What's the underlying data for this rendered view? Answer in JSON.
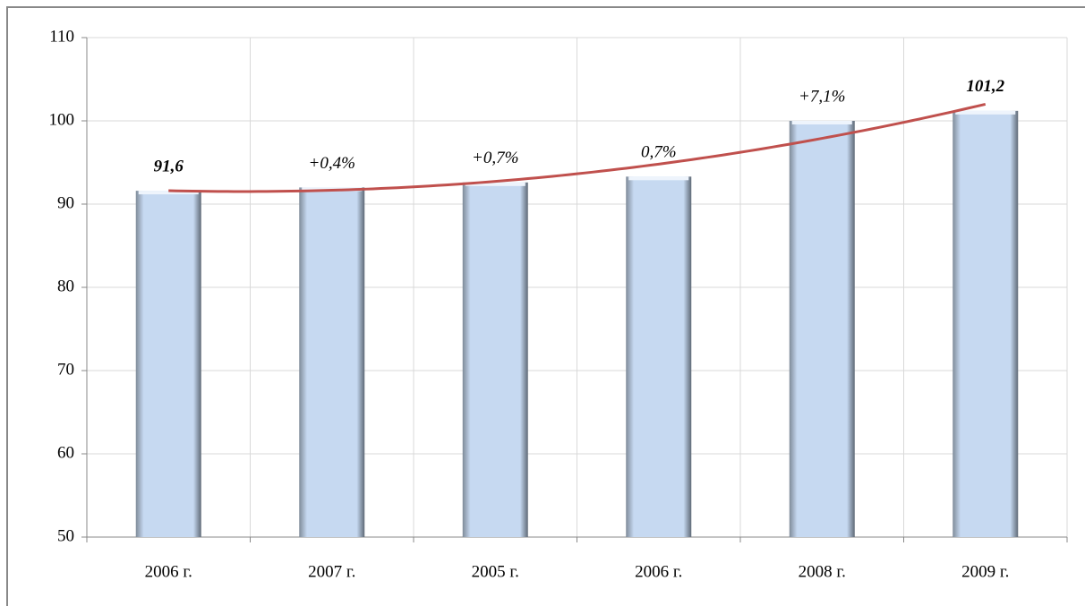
{
  "chart_data": {
    "type": "bar",
    "categories": [
      "2006 г.",
      "2007 г.",
      "2005 г.",
      "2006 г.",
      "2008 г.",
      "2009 г."
    ],
    "values": [
      91.6,
      92.0,
      92.6,
      93.3,
      100.0,
      101.2
    ],
    "annotations": [
      "91,6",
      "+0,4%",
      "+0,7%",
      "0,7%",
      "+7,1%",
      "101,2"
    ],
    "color": "#c6d9f1",
    "trendline": {
      "type": "polynomial",
      "color": "#c0504d"
    },
    "ylim": [
      50,
      110
    ],
    "yticks": [
      50,
      60,
      70,
      80,
      90,
      100,
      110
    ],
    "grid": true
  }
}
